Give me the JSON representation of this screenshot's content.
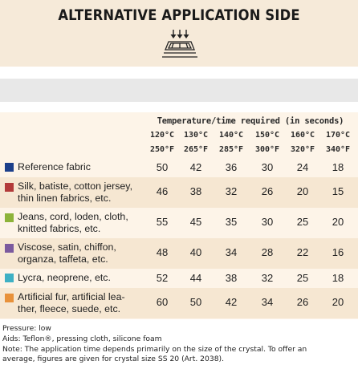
{
  "title": "ALTERNATIVE APPLICATION SIDE",
  "table": {
    "heading": "Temperature/time required (in seconds)",
    "temperatures": [
      {
        "celsius": "120°C",
        "fahrenheit": "250°F"
      },
      {
        "celsius": "130°C",
        "fahrenheit": "265°F"
      },
      {
        "celsius": "140°C",
        "fahrenheit": "285°F"
      },
      {
        "celsius": "150°C",
        "fahrenheit": "300°F"
      },
      {
        "celsius": "160°C",
        "fahrenheit": "320°F"
      },
      {
        "celsius": "170°C",
        "fahrenheit": "340°F"
      }
    ],
    "rows": [
      {
        "label_lines": [
          "Reference fabric"
        ],
        "color": "#1c3f8a",
        "values": [
          "50",
          "42",
          "36",
          "30",
          "24",
          "18"
        ]
      },
      {
        "label_lines": [
          "Silk, batiste, cotton jersey,",
          "thin linen fabrics, etc."
        ],
        "color": "#b23a3a",
        "values": [
          "46",
          "38",
          "32",
          "26",
          "20",
          "15"
        ]
      },
      {
        "label_lines": [
          "Jeans, cord, loden, cloth,",
          "knitted fabrics, etc."
        ],
        "color": "#8db33a",
        "values": [
          "55",
          "45",
          "35",
          "30",
          "25",
          "20"
        ]
      },
      {
        "label_lines": [
          "Viscose, satin, chiffon,",
          "organza, taffeta, etc."
        ],
        "color": "#7b5a9e",
        "values": [
          "48",
          "40",
          "34",
          "28",
          "22",
          "16"
        ]
      },
      {
        "label_lines": [
          "Lycra, neoprene, etc."
        ],
        "color": "#3fb0c4",
        "values": [
          "52",
          "44",
          "38",
          "32",
          "25",
          "18"
        ]
      },
      {
        "label_lines": [
          "Artificial fur, artificial lea-",
          "ther, fleece, suede, etc."
        ],
        "color": "#e8913a",
        "values": [
          "60",
          "50",
          "42",
          "34",
          "26",
          "20"
        ]
      }
    ]
  },
  "notes": {
    "pressure": "Pressure: low",
    "aids": "Aids: Teflon®, pressing cloth, silicone foam",
    "note_line1": "Note: The application time depends primarily on the size of the crystal. To offer an",
    "note_line2": "average, figures are given for crystal size SS 20 (Art. 2038)."
  }
}
